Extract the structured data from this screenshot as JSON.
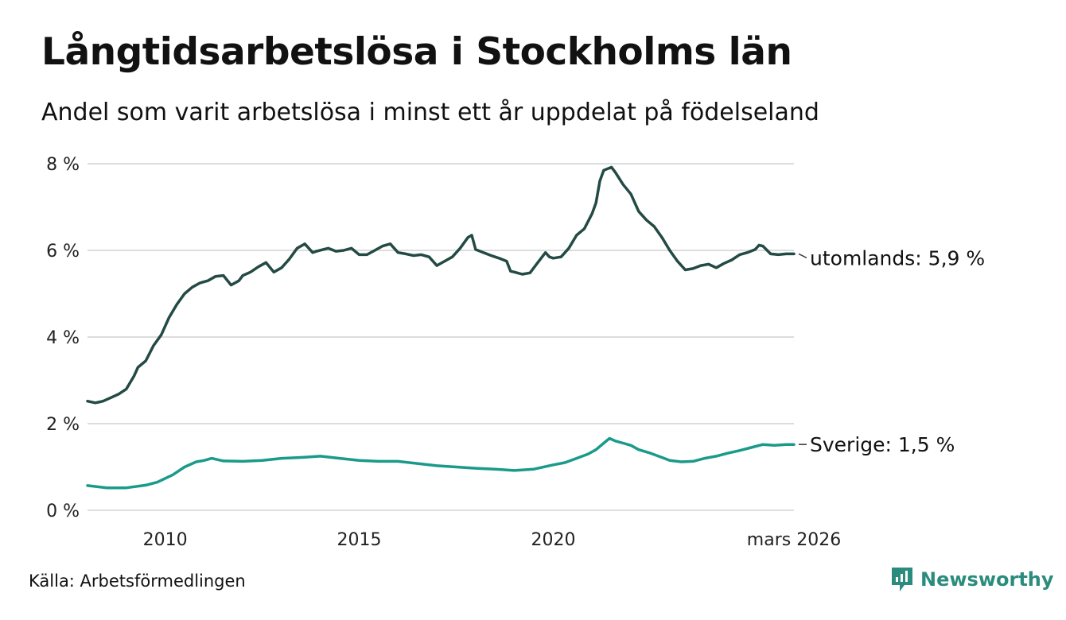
{
  "title": "Långtidsarbetslösa i Stockholms län",
  "subtitle": "Andel som varit arbetslösa i minst ett år uppdelat på födelseland",
  "source": "Källa: Arbetsförmedlingen",
  "brand": {
    "name": "Newsworthy",
    "icon": "newsworthy-logo-icon"
  },
  "colors": {
    "utomlands": "#234a44",
    "sverige": "#1a9a8a",
    "grid": "#dddddd",
    "brand": "#2b8c7e"
  },
  "chart_data": {
    "type": "line",
    "title": "Långtidsarbetslösa i Stockholms län",
    "subtitle": "Andel som varit arbetslösa i minst ett år uppdelat på födelseland",
    "xlabel": "",
    "ylabel": "",
    "xlim": [
      2008.0,
      2026.2
    ],
    "ylim": [
      0,
      8
    ],
    "y_ticks": [
      0,
      2,
      4,
      6,
      8
    ],
    "y_tick_labels": [
      "0 %",
      "2 %",
      "4 %",
      "6 %",
      "8 %"
    ],
    "x_ticks": [
      2010,
      2015,
      2020,
      2026.2
    ],
    "x_tick_labels": [
      "2010",
      "2015",
      "2020",
      "mars 2026"
    ],
    "grid": true,
    "series": [
      {
        "name": "utomlands",
        "end_label": "utomlands: 5,9 %",
        "color": "#234a44",
        "x": [
          2008.0,
          2008.2,
          2008.4,
          2008.6,
          2008.8,
          2009.0,
          2009.2,
          2009.3,
          2009.5,
          2009.7,
          2009.9,
          2010.1,
          2010.3,
          2010.5,
          2010.7,
          2010.9,
          2011.1,
          2011.3,
          2011.5,
          2011.7,
          2011.9,
          2012.0,
          2012.2,
          2012.4,
          2012.6,
          2012.8,
          2013.0,
          2013.2,
          2013.4,
          2013.6,
          2013.8,
          2013.9,
          2014.2,
          2014.4,
          2014.6,
          2014.8,
          2015.0,
          2015.2,
          2015.4,
          2015.6,
          2015.8,
          2016.0,
          2016.2,
          2016.4,
          2016.6,
          2016.8,
          2017.0,
          2017.2,
          2017.4,
          2017.6,
          2017.8,
          2017.9,
          2018.0,
          2018.2,
          2018.4,
          2018.6,
          2018.8,
          2018.9,
          2019.0,
          2019.2,
          2019.4,
          2019.6,
          2019.8,
          2019.9,
          2020.0,
          2020.2,
          2020.4,
          2020.6,
          2020.8,
          2021.0,
          2021.1,
          2021.2,
          2021.3,
          2021.5,
          2021.6,
          2021.8,
          2022.0,
          2022.2,
          2022.4,
          2022.6,
          2022.8,
          2023.0,
          2023.2,
          2023.4,
          2023.6,
          2023.8,
          2024.0,
          2024.2,
          2024.4,
          2024.6,
          2024.8,
          2025.0,
          2025.2,
          2025.3,
          2025.4,
          2025.6,
          2025.8,
          2026.0,
          2026.2
        ],
        "values": [
          2.52,
          2.48,
          2.52,
          2.6,
          2.68,
          2.8,
          3.1,
          3.3,
          3.45,
          3.8,
          4.05,
          4.45,
          4.75,
          5.0,
          5.15,
          5.25,
          5.3,
          5.4,
          5.42,
          5.2,
          5.3,
          5.42,
          5.5,
          5.62,
          5.72,
          5.5,
          5.6,
          5.8,
          6.05,
          6.15,
          5.95,
          5.98,
          6.05,
          5.98,
          6.0,
          6.05,
          5.9,
          5.9,
          6.0,
          6.1,
          6.15,
          5.95,
          5.92,
          5.88,
          5.9,
          5.85,
          5.65,
          5.75,
          5.85,
          6.05,
          6.3,
          6.35,
          6.02,
          5.95,
          5.88,
          5.82,
          5.75,
          5.52,
          5.5,
          5.45,
          5.48,
          5.72,
          5.95,
          5.85,
          5.82,
          5.85,
          6.05,
          6.35,
          6.5,
          6.85,
          7.1,
          7.6,
          7.85,
          7.92,
          7.8,
          7.52,
          7.3,
          6.9,
          6.7,
          6.55,
          6.3,
          6.0,
          5.75,
          5.55,
          5.58,
          5.65,
          5.68,
          5.6,
          5.7,
          5.78,
          5.9,
          5.95,
          6.02,
          6.12,
          6.1,
          5.92,
          5.9,
          5.92,
          5.92
        ]
      },
      {
        "name": "Sverige",
        "end_label": "Sverige: 1,5 %",
        "color": "#1a9a8a",
        "x": [
          2008.0,
          2008.5,
          2009.0,
          2009.5,
          2009.8,
          2010.2,
          2010.5,
          2010.8,
          2011.0,
          2011.2,
          2011.5,
          2012.0,
          2012.5,
          2013.0,
          2013.5,
          2014.0,
          2014.5,
          2015.0,
          2015.5,
          2016.0,
          2016.5,
          2017.0,
          2017.5,
          2018.0,
          2018.5,
          2019.0,
          2019.5,
          2020.0,
          2020.3,
          2020.6,
          2020.9,
          2021.1,
          2021.3,
          2021.45,
          2021.6,
          2021.8,
          2022.0,
          2022.2,
          2022.5,
          2022.8,
          2023.0,
          2023.3,
          2023.6,
          2023.9,
          2024.2,
          2024.5,
          2024.8,
          2025.1,
          2025.4,
          2025.7,
          2026.0,
          2026.2
        ],
        "values": [
          0.57,
          0.52,
          0.52,
          0.58,
          0.65,
          0.82,
          1.0,
          1.12,
          1.15,
          1.2,
          1.14,
          1.13,
          1.15,
          1.2,
          1.22,
          1.25,
          1.2,
          1.15,
          1.13,
          1.13,
          1.08,
          1.03,
          1.0,
          0.97,
          0.95,
          0.92,
          0.95,
          1.05,
          1.1,
          1.2,
          1.3,
          1.4,
          1.55,
          1.66,
          1.6,
          1.55,
          1.5,
          1.4,
          1.32,
          1.22,
          1.15,
          1.12,
          1.13,
          1.2,
          1.25,
          1.32,
          1.38,
          1.45,
          1.52,
          1.5,
          1.52,
          1.52
        ]
      }
    ]
  }
}
